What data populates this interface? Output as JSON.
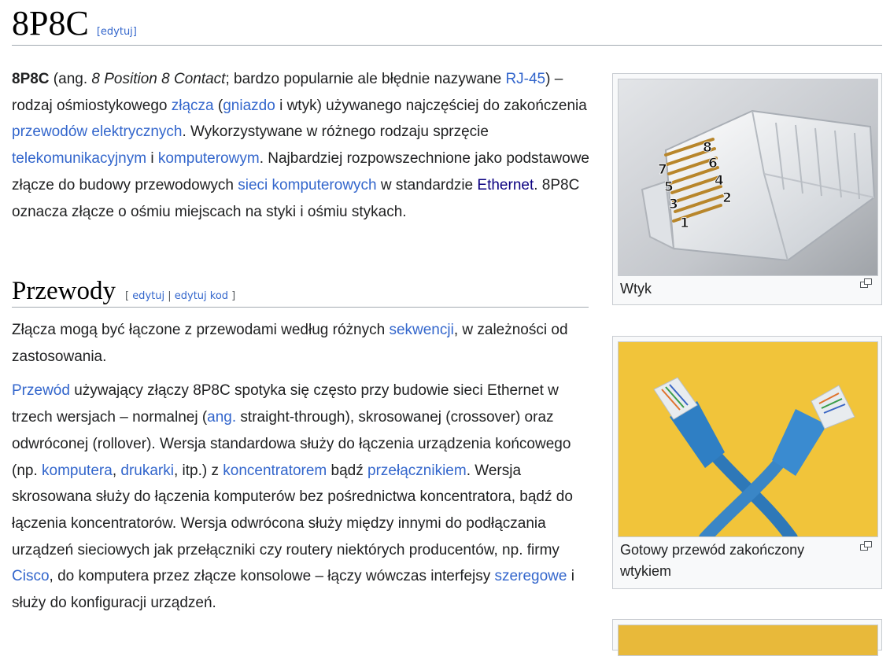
{
  "title": "8P8C",
  "title_edit": "[edytuj]",
  "intro": {
    "term": "8P8C",
    "t1": " (ang. ",
    "eng": "8 Position 8 Contact",
    "t2": "; bardzo popularnie ale błędnie nazywane ",
    "link_rj45": "RJ-45",
    "t3": ") – rodzaj ośmiostykowego ",
    "link_zlacza": "złącza",
    "t4": " (",
    "link_gniazdo": "gniazdo",
    "t5": " i wtyk) używanego najczęściej do zakończenia ",
    "link_przewodow": "przewodów elektrycznych",
    "t6": ". Wykorzystywane w różnego rodzaju sprzęcie ",
    "link_telekom": "telekomunikacyjnym",
    "t7": " i ",
    "link_komputerowym": "komputerowym",
    "t8": ". Najbardziej rozpowszechnione jako podstawowe złącze do budowy przewodowych ",
    "link_sieci": "sieci komputerowych",
    "t9": " w standardzie ",
    "link_ethernet": "Ethernet",
    "t10": ". 8P8C oznacza złącze o ośmiu miejscach na styki i ośmiu stykach."
  },
  "section": {
    "title": "Przewody",
    "edit_open": "[ ",
    "edit": "edytuj",
    "sep": " | ",
    "edit_code": "edytuj kod",
    "edit_close": " ]",
    "p1_a": "Złącza mogą być łączone z przewodami według różnych ",
    "p1_link": "sekwencji",
    "p1_b": ", w zależności od zastosowania.",
    "p2": {
      "link_przewod": "Przewód",
      "a": " używający złączy 8P8C spotyka się często przy budowie sieci Ethernet w trzech wersjach – normalnej (",
      "link_ang": "ang.",
      "b": " straight-through), skrosowanej (crossover) oraz odwróconej (rollover). Wersja standardowa służy do łączenia urządzenia końcowego (np. ",
      "link_komputera": "komputera",
      "c": ", ",
      "link_drukarki": "drukarki",
      "d": ", itp.) z ",
      "link_koncentratorem": "koncentratorem",
      "e": " bądź ",
      "link_przelacznikiem": "przełącznikiem",
      "f": ". Wersja skrosowana służy do łączenia komputerów bez pośrednictwa koncentratora, bądź do łączenia koncentratorów. Wersja odwrócona służy między innymi do podłączania urządzeń sieciowych jak przełączniki czy routery niektórych producentów, np. firmy ",
      "link_cisco": "Cisco",
      "g": ", do komputera przez złącze konsolowe – łączy wówczas interfejsy ",
      "link_szeregowe": "szeregowe",
      "h": " i służy do konfiguracji urządzeń."
    }
  },
  "thumbs": [
    {
      "caption": "Wtyk",
      "pins": [
        "1",
        "2",
        "3",
        "4",
        "5",
        "6",
        "7",
        "8"
      ]
    },
    {
      "caption": "Gotowy przewód zakończony wtykiem"
    }
  ],
  "colors": {
    "link": "#3366cc",
    "visited": "#0b0080",
    "text": "#202122",
    "border": "#a2a9b1"
  }
}
